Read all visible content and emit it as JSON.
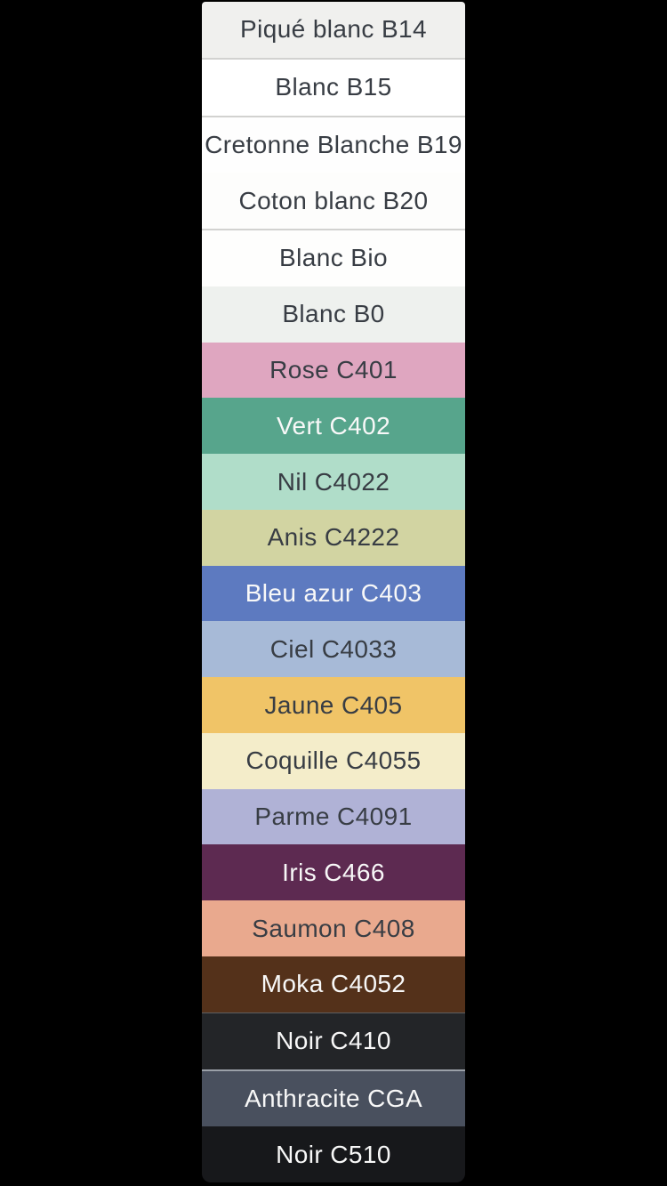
{
  "page": {
    "background_color": "#000000",
    "dark_label_color": "#383d44",
    "light_label_color": "#f8f8f8"
  },
  "swatches": [
    {
      "label": "Piqué blanc B14",
      "color": "#f0f0ee",
      "text_color": "#383d44",
      "texture": "vertical-weave",
      "divider_after": true,
      "top_highlight": "none"
    },
    {
      "label": "Blanc B15",
      "color": "#ffffff",
      "text_color": "#383d44",
      "texture": "none",
      "divider_after": true,
      "top_highlight": "none"
    },
    {
      "label": "Cretonne Blanche B19",
      "color": "#fefefe",
      "text_color": "#383d44",
      "texture": "none",
      "divider_after": false,
      "top_highlight": "none"
    },
    {
      "label": "Coton blanc B20",
      "color": "#fdfdfc",
      "text_color": "#383d44",
      "texture": "none",
      "divider_after": true,
      "top_highlight": "none"
    },
    {
      "label": "Blanc Bio",
      "color": "#fefefd",
      "text_color": "#383d44",
      "texture": "none",
      "divider_after": false,
      "top_highlight": "none"
    },
    {
      "label": "Blanc B0",
      "color": "#eef1ee",
      "text_color": "#383d44",
      "texture": "vertical-weave",
      "divider_after": false,
      "top_highlight": "none"
    },
    {
      "label": "Rose C401",
      "color": "#dfa6c0",
      "text_color": "#383d44",
      "texture": "horizontal-weave",
      "divider_after": false,
      "top_highlight": "none"
    },
    {
      "label": "Vert C402",
      "color": "#57a58c",
      "text_color": "#f8f8f8",
      "texture": "none",
      "divider_after": false,
      "top_highlight": "none"
    },
    {
      "label": "Nil C4022",
      "color": "#b0ddc9",
      "text_color": "#383d44",
      "texture": "none",
      "divider_after": false,
      "top_highlight": "none"
    },
    {
      "label": "Anis C4222",
      "color": "#d2d4a2",
      "text_color": "#383d44",
      "texture": "none",
      "divider_after": false,
      "top_highlight": "none"
    },
    {
      "label": "Bleu azur C403",
      "color": "#5d7ac0",
      "text_color": "#f8f8f8",
      "texture": "none",
      "divider_after": false,
      "top_highlight": "none"
    },
    {
      "label": "Ciel C4033",
      "color": "#a7bad7",
      "text_color": "#383d44",
      "texture": "none",
      "divider_after": false,
      "top_highlight": "none"
    },
    {
      "label": "Jaune C405",
      "color": "#f0c467",
      "text_color": "#383d44",
      "texture": "twill",
      "divider_after": false,
      "top_highlight": "none"
    },
    {
      "label": "Coquille C4055",
      "color": "#f4edca",
      "text_color": "#383d44",
      "texture": "none",
      "divider_after": false,
      "top_highlight": "none"
    },
    {
      "label": "Parme C4091",
      "color": "#b0b2d6",
      "text_color": "#383d44",
      "texture": "none",
      "divider_after": false,
      "top_highlight": "none"
    },
    {
      "label": "Iris C466",
      "color": "#5d2a51",
      "text_color": "#f8f8f8",
      "texture": "none",
      "divider_after": false,
      "top_highlight": "none"
    },
    {
      "label": "Saumon C408",
      "color": "#e9a98e",
      "text_color": "#383d44",
      "texture": "none",
      "divider_after": false,
      "top_highlight": "none"
    },
    {
      "label": "Moka C4052",
      "color": "#54311a",
      "text_color": "#f8f8f8",
      "texture": "dark-weave",
      "divider_after": false,
      "top_highlight": "none"
    },
    {
      "label": "Noir C410",
      "color": "#232528",
      "text_color": "#f8f8f8",
      "texture": "dark-weave",
      "divider_after": false,
      "top_highlight": "subtle"
    },
    {
      "label": "Anthracite CGA",
      "color": "#49505e",
      "text_color": "#f8f8f8",
      "texture": "none",
      "divider_after": false,
      "top_highlight": "strong"
    },
    {
      "label": "Noir C510",
      "color": "#17181b",
      "text_color": "#f8f8f8",
      "texture": "dark-weave",
      "divider_after": false,
      "top_highlight": "none"
    }
  ]
}
